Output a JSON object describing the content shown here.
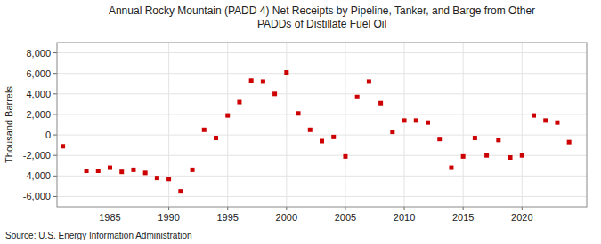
{
  "chart_data": {
    "type": "scatter",
    "title": "Annual Rocky Mountain (PADD 4) Net Receipts by Pipeline, Tanker, and Barge from Other\nPADDs of Distillate Fuel Oil",
    "ylabel": "Thousand Barrels",
    "annotations": [
      "Source: U.S. Energy Information Administration"
    ],
    "color": "#cc0000",
    "marker": "square",
    "grid": true,
    "xlim": [
      1980.5,
      2025.5
    ],
    "xticks": [
      1985,
      1990,
      1995,
      2000,
      2005,
      2010,
      2015,
      2020
    ],
    "ylim": [
      -7000,
      9000
    ],
    "yticks": [
      {
        "value": -6000,
        "label": "-6,000"
      },
      {
        "value": -4000,
        "label": "-4,000"
      },
      {
        "value": -2000,
        "label": "-2,000"
      },
      0,
      {
        "value": 2000,
        "label": "2,000"
      },
      {
        "value": 4000,
        "label": "4,000"
      },
      {
        "value": 6000,
        "label": "6,000"
      },
      {
        "value": 8000,
        "label": "8,000"
      }
    ],
    "x": [
      1981,
      1983,
      1984,
      1985,
      1986,
      1987,
      1988,
      1989,
      1990,
      1991,
      1992,
      1993,
      1994,
      1995,
      1996,
      1997,
      1998,
      1999,
      2000,
      2001,
      2002,
      2003,
      2004,
      2005,
      2006,
      2007,
      2008,
      2009,
      2010,
      2011,
      2012,
      2013,
      2014,
      2015,
      2016,
      2017,
      2018,
      2019,
      2020,
      2021,
      2022,
      2023,
      2024
    ],
    "values": [
      -1100,
      -3500,
      -3500,
      -3200,
      -3600,
      -3400,
      -3700,
      -4200,
      -4300,
      -5500,
      -3400,
      500,
      -300,
      1900,
      3200,
      5300,
      5200,
      4000,
      6100,
      2100,
      500,
      -600,
      -200,
      -2100,
      3700,
      5200,
      3100,
      300,
      1400,
      1400,
      1200,
      -400,
      -3200,
      -2100,
      -300,
      -2000,
      -500,
      -2200,
      -2000,
      1900,
      1400,
      1200,
      -700
    ]
  }
}
